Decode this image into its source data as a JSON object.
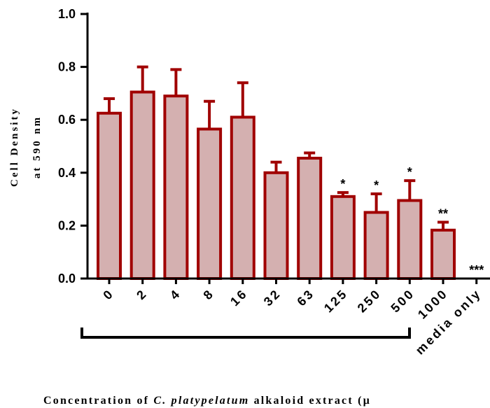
{
  "chart_data": {
    "type": "bar",
    "categories": [
      "0",
      "2",
      "4",
      "8",
      "16",
      "32",
      "63",
      "125",
      "250",
      "500",
      "1000",
      "media only"
    ],
    "values": [
      0.625,
      0.705,
      0.69,
      0.565,
      0.61,
      0.4,
      0.455,
      0.31,
      0.25,
      0.295,
      0.183,
      0.0
    ],
    "error_upper": [
      0.68,
      0.8,
      0.79,
      0.67,
      0.74,
      0.44,
      0.475,
      0.325,
      0.32,
      0.37,
      0.213,
      0.0
    ],
    "significance": [
      "",
      "",
      "",
      "",
      "",
      "",
      "",
      "*",
      "*",
      "*",
      "**",
      "***"
    ],
    "ylim": [
      0,
      1.0
    ],
    "yticks": [
      "0.0",
      "0.2",
      "0.4",
      "0.6",
      "0.8",
      "1.0"
    ],
    "ylabel_line1": "Cell Density",
    "ylabel_line2": "at 590 nm",
    "xlabel_prefix": "Concentration of ",
    "xlabel_species": "C. platypelatum",
    "xlabel_suffix": " alkaloid extract (µ",
    "colors": {
      "bar_fill": "#d4b0b0",
      "bar_stroke": "#a00000",
      "axis": "#000000"
    }
  }
}
